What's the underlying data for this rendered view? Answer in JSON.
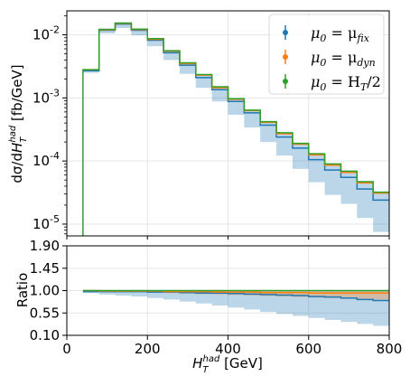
{
  "chart_data": [
    {
      "type": "line",
      "panel": "main",
      "ylabel": "dσ/dH_T^had  [fb/GeV]",
      "yscale": "log",
      "ylim": [
        6.5e-06,
        0.024
      ],
      "xlim": [
        0,
        800
      ],
      "grid": true,
      "y_ticks": [
        1e-05,
        0.0001,
        0.001,
        0.01
      ],
      "y_tick_labels": [
        "10",
        "10",
        "10",
        "10"
      ],
      "y_tick_exponents": [
        "-5",
        "-4",
        "-3",
        "-2"
      ],
      "legend": {
        "placement": "top-right",
        "entries": [
          "μ0 = μfix",
          "μ0 = μdyn",
          "μ0 = HT/2"
        ]
      },
      "bin_edges": [
        40,
        80,
        120,
        160,
        200,
        240,
        280,
        320,
        360,
        400,
        440,
        480,
        520,
        560,
        600,
        640,
        680,
        720,
        760,
        800
      ],
      "series": [
        {
          "name": "μ0 = μfix",
          "color": "#1f77b4",
          "values": [
            0.0027,
            0.0118,
            0.0148,
            0.0118,
            0.0082,
            0.0052,
            0.0033,
            0.0021,
            0.00135,
            0.00088,
            0.00058,
            0.00037,
            0.00024,
            0.00016,
            0.000105,
            7.2e-05,
            5.5e-05,
            3.6e-05,
            2.4e-05
          ],
          "band_low": [
            0.0025,
            0.0105,
            0.0128,
            0.0098,
            0.0066,
            0.004,
            0.0024,
            0.00145,
            0.00088,
            0.00054,
            0.00034,
            0.0002,
            0.000122,
            7.5e-05,
            4.6e-05,
            2.9e-05,
            2.1e-05,
            1.25e-05,
            7.5e-06
          ]
        },
        {
          "name": "μ0 = μdyn",
          "color": "#ff7f0e",
          "values": [
            0.0028,
            0.012,
            0.0152,
            0.0121,
            0.0085,
            0.0055,
            0.0035,
            0.0023,
            0.00145,
            0.00095,
            0.00063,
            0.00041,
            0.00027,
            0.000185,
            0.000125,
            8.6e-05,
            6.6e-05,
            4.5e-05,
            3.1e-05
          ]
        },
        {
          "name": "μ0 = HT/2",
          "color": "#2ca02c",
          "values": [
            0.0028,
            0.0122,
            0.0154,
            0.0123,
            0.0087,
            0.0056,
            0.0036,
            0.00235,
            0.0015,
            0.00097,
            0.00064,
            0.00042,
            0.00028,
            0.00019,
            0.00013,
            9e-05,
            6.9e-05,
            4.7e-05,
            3.2e-05
          ]
        }
      ]
    },
    {
      "type": "line",
      "panel": "ratio",
      "xlabel": "H_T^had  [GeV]",
      "ylabel": "Ratio",
      "ylim": [
        0.1,
        1.9
      ],
      "xlim": [
        0,
        800
      ],
      "grid": true,
      "y_ticks": [
        0.1,
        0.55,
        1.0,
        1.45,
        1.9
      ],
      "y_tick_labels": [
        "0.10",
        "0.55",
        "1.00",
        "1.45",
        "1.90"
      ],
      "x_ticks": [
        0,
        200,
        400,
        600,
        800
      ],
      "x_tick_labels": [
        "0",
        "200",
        "400",
        "600",
        "800"
      ],
      "bin_edges": [
        40,
        80,
        120,
        160,
        200,
        240,
        280,
        320,
        360,
        400,
        440,
        480,
        520,
        560,
        600,
        640,
        680,
        720,
        760,
        800
      ],
      "series": [
        {
          "name": "μ0 = μfix",
          "color": "#1f77b4",
          "values": [
            0.98,
            0.98,
            0.98,
            0.98,
            0.97,
            0.97,
            0.96,
            0.95,
            0.95,
            0.94,
            0.93,
            0.92,
            0.91,
            0.9,
            0.88,
            0.87,
            0.85,
            0.82,
            0.8
          ],
          "band_low": [
            0.95,
            0.92,
            0.9,
            0.88,
            0.85,
            0.82,
            0.78,
            0.74,
            0.7,
            0.66,
            0.62,
            0.57,
            0.53,
            0.49,
            0.45,
            0.41,
            0.37,
            0.33,
            0.29
          ],
          "band_high": [
            1.0,
            1.0,
            1.0,
            1.0,
            1.0,
            1.0,
            1.0,
            1.0,
            1.0,
            1.0,
            1.0,
            1.0,
            1.0,
            1.0,
            1.0,
            1.0,
            1.0,
            1.0,
            1.0
          ]
        },
        {
          "name": "μ0 = μdyn",
          "color": "#ff7f0e",
          "values": [
            1.0,
            0.99,
            0.99,
            0.99,
            0.99,
            0.98,
            0.98,
            0.98,
            0.97,
            0.97,
            0.97,
            0.96,
            0.96,
            0.96,
            0.95,
            0.95,
            0.95,
            0.95,
            0.95
          ],
          "band_low": [
            0.99,
            0.98,
            0.97,
            0.97,
            0.96,
            0.95,
            0.94,
            0.93,
            0.92,
            0.91,
            0.9,
            0.89,
            0.88,
            0.87,
            0.86,
            0.85,
            0.84,
            0.83,
            0.82
          ],
          "band_high": [
            1.0,
            1.0,
            1.0,
            1.0,
            1.0,
            1.0,
            1.0,
            1.0,
            1.0,
            1.0,
            1.0,
            1.0,
            1.0,
            1.0,
            1.0,
            1.0,
            1.0,
            1.0,
            1.0
          ]
        },
        {
          "name": "μ0 = HT/2",
          "color": "#2ca02c",
          "values": [
            1.0,
            1.0,
            1.0,
            1.0,
            1.0,
            1.0,
            1.0,
            1.0,
            1.0,
            1.0,
            1.0,
            1.0,
            1.0,
            1.0,
            1.0,
            1.0,
            1.0,
            1.0,
            1.0
          ]
        }
      ]
    }
  ]
}
